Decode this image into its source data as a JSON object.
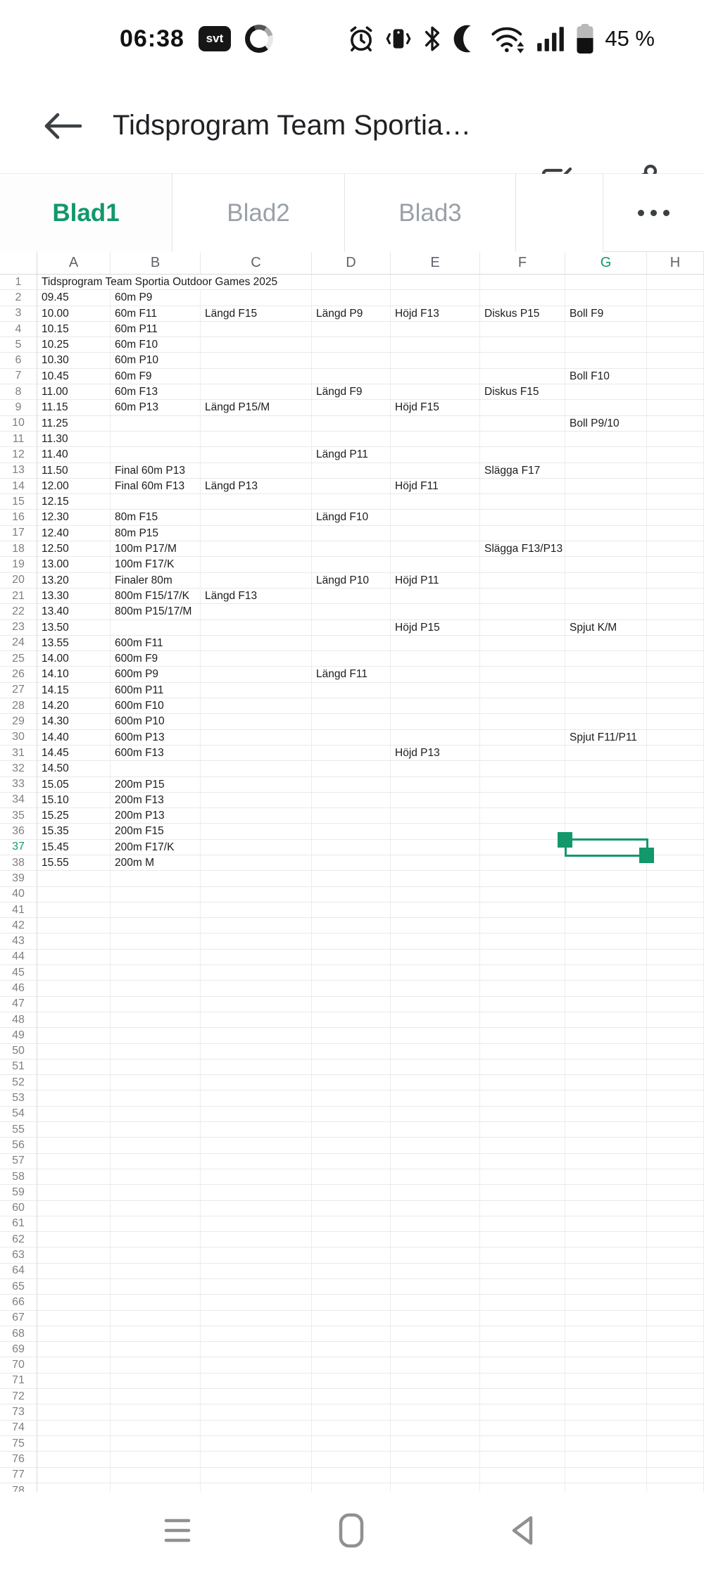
{
  "colors": {
    "accent_green": "#12986A"
  },
  "status_bar": {
    "time": "06:38",
    "app_badge": "svt",
    "battery_percent": "45 %",
    "icons": [
      "alarm",
      "vibrate",
      "bluetooth",
      "do-not-disturb-moon",
      "wifi",
      "signal",
      "battery"
    ]
  },
  "title_bar": {
    "title": "Tidsprogram Team Sportia…"
  },
  "sheet_tabs": {
    "tabs": [
      {
        "label": "Blad1",
        "active": true
      },
      {
        "label": "Blad2",
        "active": false
      },
      {
        "label": "Blad3",
        "active": false
      },
      {
        "label": "",
        "active": false
      }
    ],
    "more_label": "more-sheets"
  },
  "spreadsheet": {
    "columns": [
      "A",
      "B",
      "C",
      "D",
      "E",
      "F",
      "G",
      "H"
    ],
    "selected_column": "G",
    "selected_row": 37,
    "selected_cell": "G37",
    "total_rows_visible": 78,
    "rows": [
      {
        "n": 1,
        "cells": {
          "A": "Tidsprogram Team Sportia Outdoor Games 2025"
        },
        "overflow": true
      },
      {
        "n": 2,
        "cells": {
          "A": "09.45",
          "B": "60m P9"
        }
      },
      {
        "n": 3,
        "cells": {
          "A": "10.00",
          "B": "60m F11",
          "C": "Längd F15",
          "D": "Längd P9",
          "E": "Höjd F13",
          "F": "Diskus P15",
          "G": "Boll F9"
        }
      },
      {
        "n": 4,
        "cells": {
          "A": "10.15",
          "B": "60m P11"
        }
      },
      {
        "n": 5,
        "cells": {
          "A": "10.25",
          "B": "60m F10"
        }
      },
      {
        "n": 6,
        "cells": {
          "A": "10.30",
          "B": "60m P10"
        }
      },
      {
        "n": 7,
        "cells": {
          "A": "10.45",
          "B": "60m F9",
          "G": "Boll F10"
        }
      },
      {
        "n": 8,
        "cells": {
          "A": "11.00",
          "B": "60m F13",
          "D": "Längd F9",
          "F": "Diskus F15"
        }
      },
      {
        "n": 9,
        "cells": {
          "A": "11.15",
          "B": "60m P13",
          "C": "Längd P15/M",
          "E": "Höjd F15"
        }
      },
      {
        "n": 10,
        "cells": {
          "A": "11.25",
          "G": "Boll P9/10"
        }
      },
      {
        "n": 11,
        "cells": {
          "A": "11.30"
        }
      },
      {
        "n": 12,
        "cells": {
          "A": "11.40",
          "D": "Längd P11"
        }
      },
      {
        "n": 13,
        "cells": {
          "A": "11.50",
          "B": "Final 60m P13",
          "F": "Slägga F17"
        }
      },
      {
        "n": 14,
        "cells": {
          "A": "12.00",
          "B": "Final 60m F13",
          "C": "Längd P13",
          "E": "Höjd F11"
        }
      },
      {
        "n": 15,
        "cells": {
          "A": "12.15"
        }
      },
      {
        "n": 16,
        "cells": {
          "A": "12.30",
          "B": "80m F15",
          "D": "Längd F10"
        }
      },
      {
        "n": 17,
        "cells": {
          "A": "12.40",
          "B": "80m P15"
        }
      },
      {
        "n": 18,
        "cells": {
          "A": "12.50",
          "B": "100m P17/M",
          "F": "Slägga F13/P13"
        }
      },
      {
        "n": 19,
        "cells": {
          "A": "13.00",
          "B": "100m F17/K"
        }
      },
      {
        "n": 20,
        "cells": {
          "A": "13.20",
          "B": "Finaler 80m",
          "D": "Längd P10",
          "E": "Höjd P11"
        }
      },
      {
        "n": 21,
        "cells": {
          "A": "13.30",
          "B": "800m F15/17/K",
          "C": "Längd F13"
        }
      },
      {
        "n": 22,
        "cells": {
          "A": "13.40",
          "B": "800m P15/17/M"
        }
      },
      {
        "n": 23,
        "cells": {
          "A": "13.50",
          "E": "Höjd P15",
          "G": "Spjut K/M"
        }
      },
      {
        "n": 24,
        "cells": {
          "A": "13.55",
          "B": "600m F11"
        }
      },
      {
        "n": 25,
        "cells": {
          "A": "14.00",
          "B": "600m F9"
        }
      },
      {
        "n": 26,
        "cells": {
          "A": "14.10",
          "B": "600m P9",
          "D": "Längd F11"
        }
      },
      {
        "n": 27,
        "cells": {
          "A": "14.15",
          "B": "600m P11"
        }
      },
      {
        "n": 28,
        "cells": {
          "A": "14.20",
          "B": "600m F10"
        }
      },
      {
        "n": 29,
        "cells": {
          "A": "14.30",
          "B": "600m P10"
        }
      },
      {
        "n": 30,
        "cells": {
          "A": "14.40",
          "B": "600m P13",
          "G": "Spjut F11/P11"
        }
      },
      {
        "n": 31,
        "cells": {
          "A": "14.45",
          "B": "600m F13",
          "E": "Höjd P13"
        }
      },
      {
        "n": 32,
        "cells": {
          "A": "14.50"
        }
      },
      {
        "n": 33,
        "cells": {
          "A": "15.05",
          "B": "200m P15"
        }
      },
      {
        "n": 34,
        "cells": {
          "A": "15.10",
          "B": "200m F13"
        }
      },
      {
        "n": 35,
        "cells": {
          "A": "15.25",
          "B": "200m P13"
        }
      },
      {
        "n": 36,
        "cells": {
          "A": "15.35",
          "B": "200m F15"
        }
      },
      {
        "n": 37,
        "cells": {
          "A": "15.45",
          "B": "200m F17/K"
        }
      },
      {
        "n": 38,
        "cells": {
          "A": "15.55",
          "B": "200m M"
        }
      }
    ]
  },
  "nav_bar": {
    "icons": [
      "recents-menu",
      "home",
      "back"
    ]
  }
}
